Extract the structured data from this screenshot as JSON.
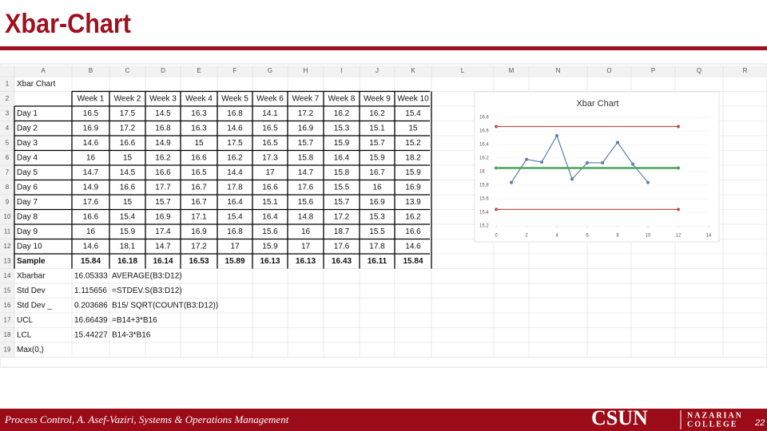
{
  "title": "Xbar-Chart",
  "sheet": {
    "columns": [
      "A",
      "B",
      "C",
      "D",
      "E",
      "F",
      "G",
      "H",
      "I",
      "J",
      "K",
      "L",
      "M",
      "N",
      "O",
      "P",
      "Q",
      "R"
    ],
    "row_numbers": [
      1,
      2,
      3,
      4,
      5,
      6,
      7,
      8,
      9,
      10,
      11,
      12,
      13,
      14,
      15,
      16,
      17,
      18,
      19
    ],
    "A1": "Xbar Chart",
    "weeks": [
      "Week 1",
      "Week 2",
      "Week 3",
      "Week 4",
      "Week 5",
      "Week 6",
      "Week 7",
      "Week 8",
      "Week 9",
      "Week 10"
    ],
    "days": [
      {
        "label": "Day 1",
        "values": [
          16.5,
          17.5,
          14.5,
          16.3,
          16.8,
          14.1,
          17.2,
          16.2,
          16.2,
          15.4
        ]
      },
      {
        "label": "Day 2",
        "values": [
          16.9,
          17.2,
          16.8,
          16.3,
          14.6,
          16.5,
          16.9,
          15.3,
          15.1,
          15
        ]
      },
      {
        "label": "Day 3",
        "values": [
          14.6,
          16.6,
          14.9,
          15,
          17.5,
          16.5,
          15.7,
          15.9,
          15.7,
          15.2
        ]
      },
      {
        "label": "Day 4",
        "values": [
          16,
          15,
          16.2,
          16.6,
          16.2,
          17.3,
          15.8,
          16.4,
          15.9,
          18.2
        ]
      },
      {
        "label": "Day 5",
        "values": [
          14.7,
          14.5,
          16.6,
          16.5,
          14.4,
          17,
          14.7,
          15.8,
          16.7,
          15.9
        ]
      },
      {
        "label": "Day 6",
        "values": [
          14.9,
          16.6,
          17.7,
          16.7,
          17.8,
          16.6,
          17.6,
          15.5,
          16,
          16.9
        ]
      },
      {
        "label": "Day 7",
        "values": [
          17.6,
          15,
          15.7,
          16.7,
          16.4,
          15.1,
          15.6,
          15.7,
          16.9,
          13.9
        ]
      },
      {
        "label": "Day 8",
        "values": [
          16.6,
          15.4,
          16.9,
          17.1,
          15.4,
          16.4,
          14.8,
          17.2,
          15.3,
          16.2
        ]
      },
      {
        "label": "Day 9",
        "values": [
          16,
          15.9,
          17.4,
          16.9,
          16.8,
          15.6,
          16,
          18.7,
          15.5,
          16.6
        ]
      },
      {
        "label": "Day 10",
        "values": [
          14.6,
          18.1,
          14.7,
          17.2,
          17,
          15.9,
          17,
          17.6,
          17.8,
          14.6
        ]
      }
    ],
    "sample": {
      "label": "Sample",
      "values": [
        15.84,
        16.18,
        16.14,
        16.53,
        15.89,
        16.13,
        16.13,
        16.43,
        16.11,
        15.84
      ]
    },
    "stats": [
      {
        "label": "Xbarbar",
        "value": 16.05333,
        "formula": "AVERAGE(B3:D12)"
      },
      {
        "label": "Std Dev",
        "value": 1.115656,
        "formula": "=STDEV.S(B3:D12)"
      },
      {
        "label": "Std Dev _",
        "value": 0.203686,
        "formula": "B15/ SQRT(COUNT(B3:D12))"
      },
      {
        "label": "UCL",
        "value": 16.66439,
        "formula": "=B14+3*B16"
      },
      {
        "label": "LCL",
        "value": 15.44227,
        "formula": "B14-3*B16"
      }
    ],
    "A19": "Max(0,)"
  },
  "chart_data": {
    "type": "line",
    "title": "Xbar Chart",
    "series": [
      {
        "color": "#5b7fa6",
        "x": [
          1,
          2,
          3,
          4,
          5,
          6,
          7,
          8,
          9,
          10
        ],
        "values": [
          15.84,
          16.18,
          16.14,
          16.53,
          15.89,
          16.13,
          16.13,
          16.43,
          16.11,
          15.84
        ]
      },
      {
        "color": "#c0504d",
        "x": [
          0,
          12
        ],
        "values": [
          16.66439,
          16.66439
        ]
      },
      {
        "color": "#4aa35a",
        "x": [
          0,
          12
        ],
        "values": [
          16.05333,
          16.05333
        ]
      },
      {
        "color": "#c0504d",
        "x": [
          0,
          12
        ],
        "values": [
          15.44227,
          15.44227
        ]
      }
    ],
    "xlim": [
      0,
      14
    ],
    "xticks": [
      0,
      2,
      4,
      6,
      8,
      10,
      12,
      14
    ],
    "ylim": [
      15.2,
      16.8
    ],
    "yticks": [
      15.2,
      15.4,
      15.6,
      15.8,
      16,
      16.2,
      16.4,
      16.6,
      16.8
    ]
  },
  "footer": {
    "text": "Process Control, A. Asef-Vaziri, Systems & Operations Management",
    "logo": "CSUN",
    "college_1": "NAZARIAN",
    "college_2": "COLLEGE",
    "page": 22
  }
}
